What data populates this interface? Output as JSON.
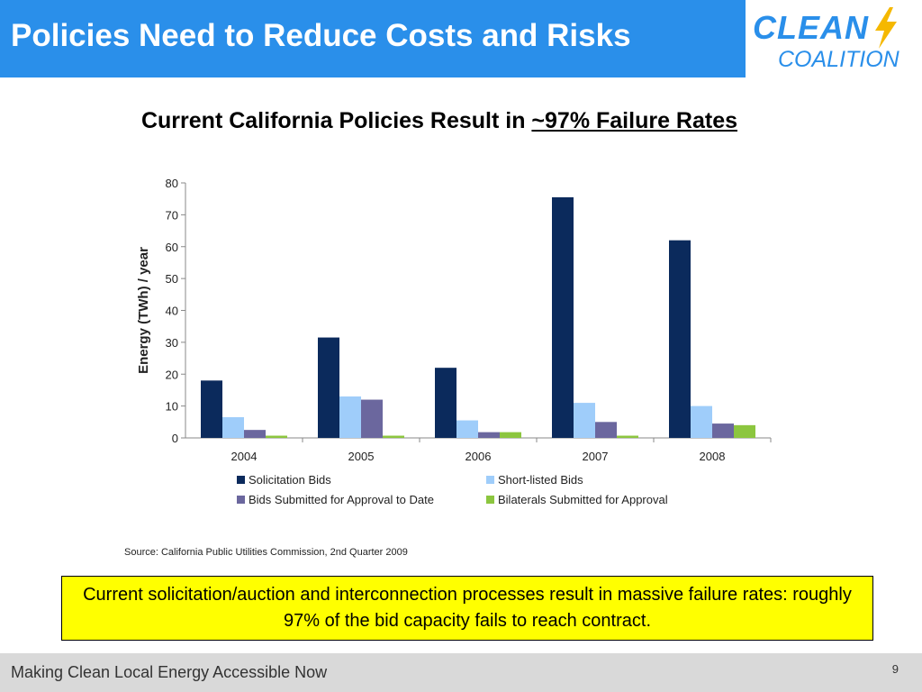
{
  "header": {
    "title": "Policies Need to Reduce Costs and Risks",
    "logo_top": "CLEAN",
    "logo_bottom": "COALITION"
  },
  "subtitle": {
    "lead": "Current California Policies Result in ",
    "emphasis": "~97% Failure Rates"
  },
  "chart_data": {
    "type": "bar",
    "categories": [
      "2004",
      "2005",
      "2006",
      "2007",
      "2008"
    ],
    "ylabel": "Energy (TWh) / year",
    "xlabel": "",
    "ylim": [
      0,
      80
    ],
    "yticks": [
      0,
      10,
      20,
      30,
      40,
      50,
      60,
      70,
      80
    ],
    "grid": false,
    "legend_position": "bottom",
    "series": [
      {
        "name": "Solicitation Bids",
        "color": "#0b2a5c",
        "values": [
          18,
          31.5,
          22,
          75.5,
          62
        ]
      },
      {
        "name": "Short-listed Bids",
        "color": "#9fcdfa",
        "values": [
          6.5,
          13,
          5.5,
          11,
          10
        ]
      },
      {
        "name": "Bids Submitted for Approval to Date",
        "color": "#6b679e",
        "values": [
          2.5,
          12,
          1.8,
          5,
          4.5
        ]
      },
      {
        "name": "Bilaterals Submitted for Approval",
        "color": "#8cc63f",
        "values": [
          0.7,
          0.7,
          1.8,
          0.7,
          4
        ]
      }
    ],
    "source": "Source: California Public Utilities Commission, 2nd Quarter 2009"
  },
  "callout": {
    "text": "Current solicitation/auction and interconnection processes result in massive failure rates: roughly 97% of the bid capacity fails to reach contract."
  },
  "footer": {
    "text": "Making Clean Local Energy Accessible Now",
    "page": "9"
  }
}
